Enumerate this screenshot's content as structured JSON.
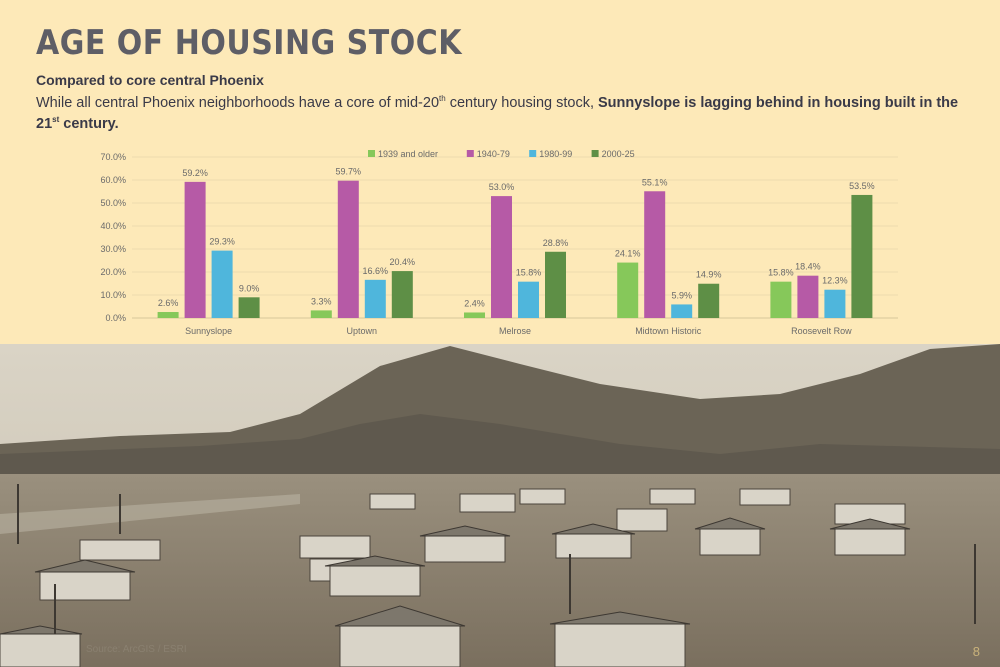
{
  "page": {
    "title": "Age of Housing Stock",
    "subtitle": "Compared to core central Phoenix",
    "body_prefix": "While all central Phoenix neighborhoods have a core of mid-20",
    "body_sup1": "th",
    "body_mid": " century housing stock, ",
    "body_bold": "Sunnyslope is lagging behind in housing built in the 21",
    "body_sup2": "st",
    "body_bold_end": " century.",
    "source": "Source: ArcGIS / ESRI",
    "page_number": "8"
  },
  "colors": {
    "background": "#fde9b8",
    "title": "#5e5e66",
    "series": [
      "#86c85a",
      "#b65aa6",
      "#4fb6dc",
      "#5e8f46"
    ]
  },
  "chart_data": {
    "type": "bar",
    "categories": [
      "Sunnyslope",
      "Uptown",
      "Melrose",
      "Midtown Historic",
      "Roosevelt Row"
    ],
    "series": [
      {
        "name": "1939 and older",
        "values": [
          2.6,
          3.3,
          2.4,
          24.1,
          15.8
        ]
      },
      {
        "name": "1940-79",
        "values": [
          59.2,
          59.7,
          53.0,
          55.1,
          18.4
        ]
      },
      {
        "name": "1980-99",
        "values": [
          29.3,
          16.6,
          15.8,
          5.9,
          12.3
        ]
      },
      {
        "name": "2000-25",
        "values": [
          9.0,
          20.4,
          28.8,
          14.9,
          53.5
        ]
      }
    ],
    "yticks": [
      "0.0%",
      "10.0%",
      "20.0%",
      "30.0%",
      "40.0%",
      "50.0%",
      "60.0%",
      "70.0%"
    ],
    "ylim": [
      0,
      70
    ],
    "value_suffix": "%",
    "legend_position": "top",
    "grid": true
  }
}
